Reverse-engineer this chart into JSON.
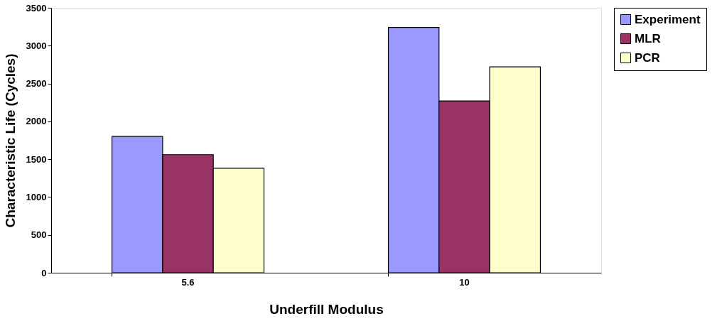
{
  "chart_data": {
    "type": "bar",
    "xlabel": "Underfill Modulus",
    "ylabel": "Characteristic Life (Cycles)",
    "categories": [
      "5.6",
      "10"
    ],
    "series": [
      {
        "name": "Experiment",
        "color": "#9999ff",
        "values": [
          1800,
          3240
        ]
      },
      {
        "name": "MLR",
        "color": "#993366",
        "values": [
          1560,
          2270
        ]
      },
      {
        "name": "PCR",
        "color": "#ffffcc",
        "values": [
          1380,
          2720
        ]
      }
    ],
    "ylim": [
      0,
      3500
    ],
    "yticks": [
      0,
      500,
      1000,
      1500,
      2000,
      2500,
      3000,
      3500
    ],
    "grid": false,
    "legend": "right"
  }
}
